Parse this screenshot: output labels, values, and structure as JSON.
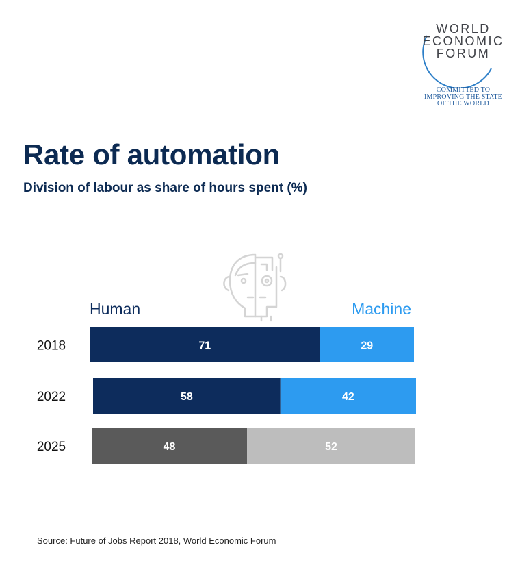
{
  "logo": {
    "line1": "WORLD",
    "line2": "ECONOMIC",
    "line3": "FORUM",
    "tagline": [
      "COMMITTED TO",
      "IMPROVING THE STATE",
      "OF THE WORLD"
    ]
  },
  "header": {
    "title": "Rate of automation",
    "subtitle": "Division of labour as share of hours spent (%)"
  },
  "legend": {
    "human": "Human",
    "machine": "Machine"
  },
  "colors": {
    "human": "#0d2c5c",
    "machine": "#2d9bf0",
    "projected_human": "#5a5a5a",
    "projected_machine": "#bdbdbd",
    "text_navy": "#0c2a52"
  },
  "chart_data": {
    "type": "bar",
    "orientation": "horizontal",
    "stacked": true,
    "categories": [
      "2018",
      "2022",
      "2025"
    ],
    "series": [
      {
        "name": "Human",
        "values": [
          71,
          58,
          48
        ]
      },
      {
        "name": "Machine",
        "values": [
          29,
          42,
          52
        ]
      }
    ],
    "xlim": [
      0,
      100
    ],
    "grid": false,
    "legend_placement": "top"
  },
  "footer": {
    "source": "Source: Future of Jobs Report 2018, World Economic Forum"
  }
}
